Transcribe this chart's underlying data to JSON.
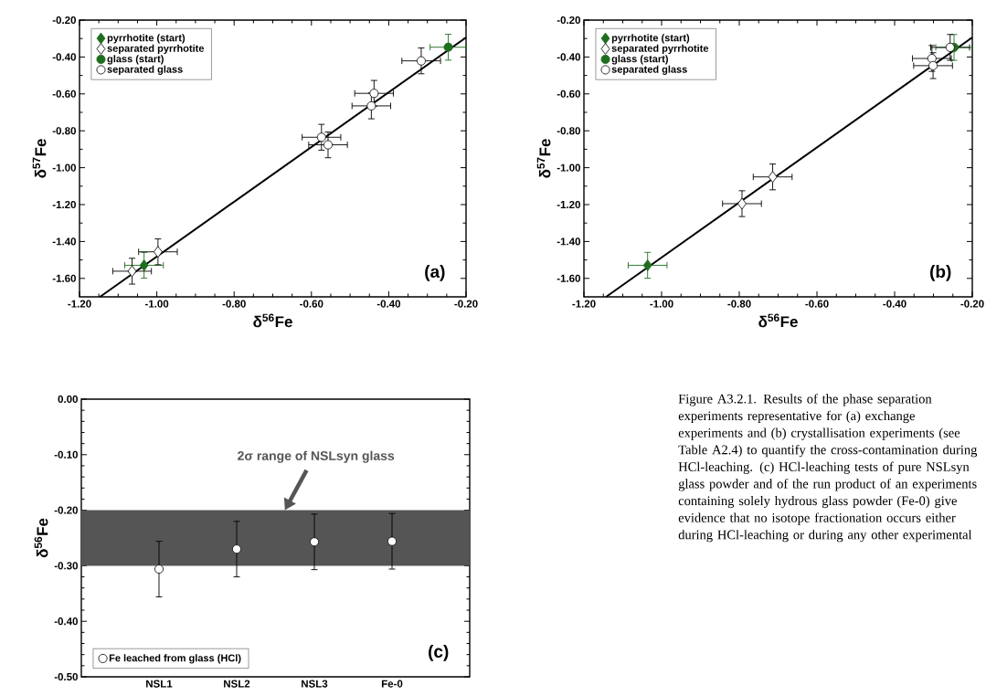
{
  "chart_data": [
    {
      "type": "scatter",
      "xlabel": "δ$^{56}$Fe",
      "ylabel": "δ$^{57}$Fe",
      "xlim": [
        -1.2,
        -0.2
      ],
      "ylim": [
        -1.7,
        -0.2
      ],
      "xticks": [
        {
          "value": -1.2,
          "label": "-1.20"
        },
        {
          "value": -1.0,
          "label": "-1.00"
        },
        {
          "value": -0.8,
          "label": "-0.80"
        },
        {
          "value": -0.6,
          "label": "-0.60"
        },
        {
          "value": -0.4,
          "label": "-0.40"
        },
        {
          "value": -0.2,
          "label": "-0.20"
        }
      ],
      "yticks": [
        {
          "value": -1.6,
          "label": "-1.60"
        },
        {
          "value": -1.4,
          "label": "-1.40"
        },
        {
          "value": -1.2,
          "label": "-1.20"
        },
        {
          "value": -1.0,
          "label": "-1.00"
        },
        {
          "value": -0.8,
          "label": "-0.80"
        },
        {
          "value": -0.6,
          "label": "-0.60"
        },
        {
          "value": -0.4,
          "label": "-0.40"
        },
        {
          "value": -0.2,
          "label": "-0.20"
        }
      ],
      "legend": "top left",
      "annotations": [
        "(a)"
      ],
      "series": [
        {
          "type": "line",
          "color": "#000000",
          "x": [
            -1.147,
            -0.2
          ],
          "values": [
            -1.7,
            -0.294
          ]
        },
        {
          "name": "pyrrhotite (start)",
          "marker": "diamond",
          "color": "#1f6e1f",
          "x": [
            -1.033
          ],
          "values": [
            -1.529
          ],
          "xerrors": [
            0.05
          ],
          "errors": [
            0.07
          ]
        },
        {
          "name": "separated pyrrhotite",
          "marker": "diamond",
          "color": "#ffffff",
          "x": [
            -1.064,
            -0.997
          ],
          "values": [
            -1.561,
            -1.456
          ],
          "xerrors": [
            0.05,
            0.05
          ],
          "errors": [
            0.07,
            0.07
          ]
        },
        {
          "name": "glass (start)",
          "marker": "circle",
          "color": "#1f6e1f",
          "x": [
            -0.246
          ],
          "values": [
            -0.347
          ],
          "xerrors": [
            0.047
          ],
          "errors": [
            0.07
          ]
        },
        {
          "name": "separated glass",
          "marker": "circle",
          "color": "#ffffff",
          "x": [
            -0.316,
            -0.438,
            -0.445,
            -0.574,
            -0.557
          ],
          "values": [
            -0.421,
            -0.597,
            -0.665,
            -0.835,
            -0.876
          ],
          "xerrors": [
            0.05,
            0.05,
            0.05,
            0.05,
            0.05
          ],
          "errors": [
            0.07,
            0.07,
            0.07,
            0.07,
            0.07
          ]
        }
      ]
    },
    {
      "type": "scatter",
      "xlabel": "δ$^{56}$Fe",
      "ylabel": "δ$^{57}$Fe",
      "xlim": [
        -1.2,
        -0.2
      ],
      "ylim": [
        -1.7,
        -0.2
      ],
      "xticks": [
        {
          "value": -1.2,
          "label": "-1.20"
        },
        {
          "value": -1.0,
          "label": "-1.00"
        },
        {
          "value": -0.8,
          "label": "-0.80"
        },
        {
          "value": -0.6,
          "label": "-0.60"
        },
        {
          "value": -0.4,
          "label": "-0.40"
        },
        {
          "value": -0.2,
          "label": "-0.20"
        }
      ],
      "yticks": [
        {
          "value": -1.6,
          "label": "-1.60"
        },
        {
          "value": -1.4,
          "label": "-1.40"
        },
        {
          "value": -1.2,
          "label": "-1.20"
        },
        {
          "value": -1.0,
          "label": "-1.00"
        },
        {
          "value": -0.8,
          "label": "-0.80"
        },
        {
          "value": -0.6,
          "label": "-0.60"
        },
        {
          "value": -0.4,
          "label": "-0.40"
        },
        {
          "value": -0.2,
          "label": "-0.20"
        }
      ],
      "legend": "top left",
      "annotations": [
        "(b)"
      ],
      "series": [
        {
          "type": "line",
          "color": "#000000",
          "x": [
            -1.143,
            -0.2
          ],
          "values": [
            -1.7,
            -0.294
          ]
        },
        {
          "name": "pyrrhotite (start)",
          "marker": "diamond",
          "color": "#1f6e1f",
          "x": [
            -1.036
          ],
          "values": [
            -1.529
          ],
          "xerrors": [
            0.05
          ],
          "errors": [
            0.07
          ]
        },
        {
          "name": "separated pyrrhotite",
          "marker": "diamond",
          "color": "#ffffff",
          "x": [
            -0.793,
            -0.714
          ],
          "values": [
            -1.195,
            -1.05
          ],
          "xerrors": [
            0.05,
            0.05
          ],
          "errors": [
            0.07,
            0.07
          ]
        },
        {
          "name": "glass (start)",
          "marker": "circle",
          "color": "#1f6e1f",
          "x": [
            -0.247
          ],
          "values": [
            -0.348
          ],
          "xerrors": [
            0.047
          ],
          "errors": [
            0.07
          ]
        },
        {
          "name": "separated glass",
          "marker": "circle",
          "color": "#ffffff",
          "x": [
            -0.257,
            -0.304,
            -0.301
          ],
          "values": [
            -0.348,
            -0.408,
            -0.447
          ],
          "xerrors": [
            0.05,
            0.05,
            0.05
          ],
          "errors": [
            0.07,
            0.07,
            0.07
          ]
        }
      ]
    },
    {
      "type": "scatter",
      "ylabel": "δ$^{56}$Fe",
      "categories": [
        "NSL1",
        "NSL2",
        "NSL3",
        "Fe-0"
      ],
      "ylim": [
        -0.5,
        0.0
      ],
      "yticks": [
        {
          "value": -0.5,
          "label": "-0.50"
        },
        {
          "value": -0.4,
          "label": "-0.40"
        },
        {
          "value": -0.3,
          "label": "-0.30"
        },
        {
          "value": -0.2,
          "label": "-0.20"
        },
        {
          "value": -0.1,
          "label": "-0.10"
        },
        {
          "value": 0.0,
          "label": "0.00"
        }
      ],
      "legend": "bottom left",
      "annotations": [
        "(c)"
      ],
      "bands": [
        {
          "axis": "y",
          "from": -0.3,
          "to": -0.2,
          "label": "2σ range of NSLsyn glass",
          "color": "#555555"
        }
      ],
      "series": [
        {
          "name": "Fe leached from glass (HCl)",
          "marker": "circle",
          "color": "#ffffff",
          "values": [
            -0.306,
            -0.27,
            -0.257,
            -0.256
          ],
          "errors": [
            0.05,
            0.05,
            0.05,
            0.05
          ]
        }
      ]
    },
    {
      "type": "other",
      "annotations": [
        "Figure A3.2.1. Results of the phase separation experiments representative for (a) exchange experiments and (b) crystallisation experiments (see Table A2.4) to quantify the cross-contamination during HCl-leaching. (c) HCl-leaching tests of pure NSLsyn glass powder and of the run product of an experiments containing solely hydrous glass powder (Fe-0) give evidence that no isotope fractionation occurs either during HCl-leaching or during any other experimental"
      ]
    }
  ]
}
